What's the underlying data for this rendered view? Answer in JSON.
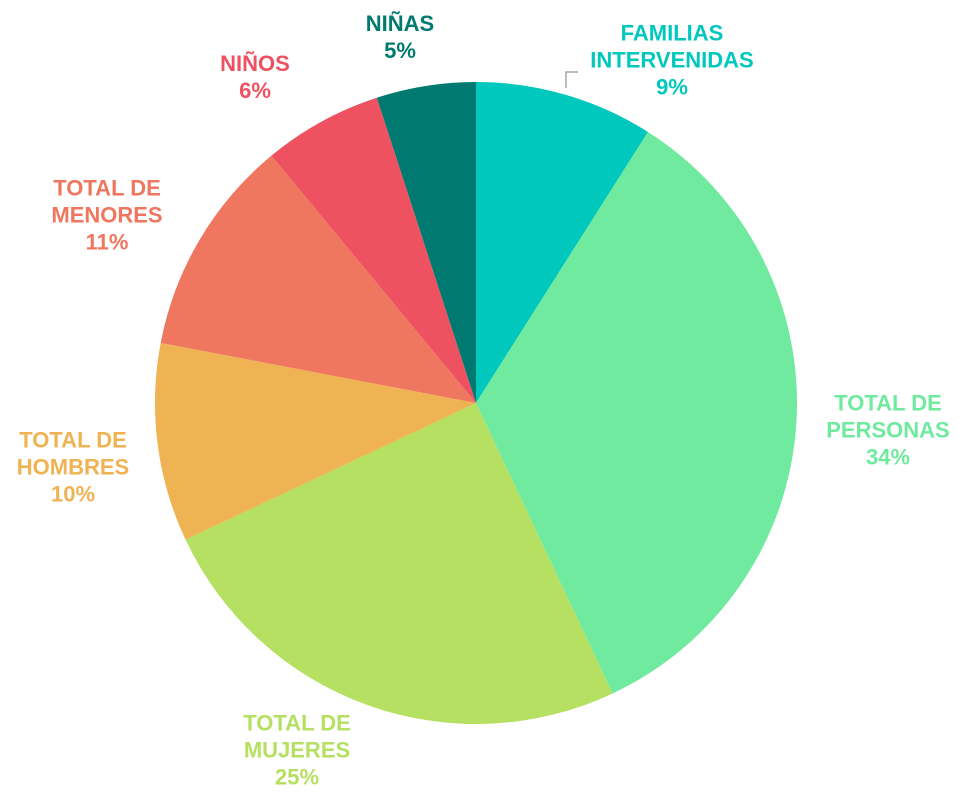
{
  "chart_data": {
    "type": "pie",
    "categories": [
      "FAMILIAS INTERVENIDAS",
      "TOTAL DE PERSONAS",
      "TOTAL DE MUJERES",
      "TOTAL DE HOMBRES",
      "TOTAL DE MENORES",
      "NIÑOS",
      "NIÑAS"
    ],
    "values": [
      9,
      34,
      25,
      10,
      11,
      6,
      5
    ],
    "value_labels": [
      "9%",
      "34%",
      "25%",
      "10%",
      "11%",
      "6%",
      "5%"
    ],
    "colors": [
      "#00c8bd",
      "#6fea9e",
      "#b5e061",
      "#efb353",
      "#ef7760",
      "#ee5260",
      "#007a70"
    ]
  }
}
